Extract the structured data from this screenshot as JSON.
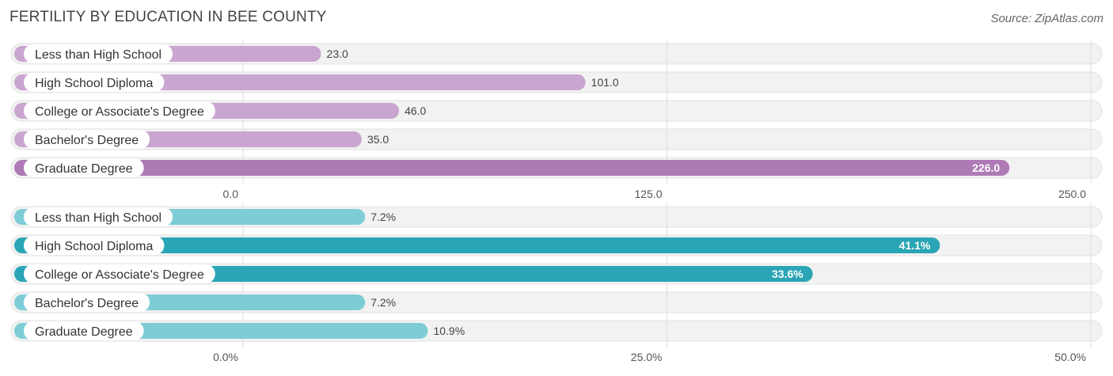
{
  "header": {
    "title": "FERTILITY BY EDUCATION IN BEE COUNTY",
    "source": "Source: ZipAtlas.com"
  },
  "chart_data": [
    {
      "type": "bar",
      "orientation": "horizontal",
      "categories": [
        "Less than High School",
        "High School Diploma",
        "College or Associate's Degree",
        "Bachelor's Degree",
        "Graduate Degree"
      ],
      "values": [
        23.0,
        101.0,
        46.0,
        35.0,
        226.0
      ],
      "value_labels": [
        "23.0",
        "101.0",
        "46.0",
        "35.0",
        "226.0"
      ],
      "xlim": [
        0,
        250
      ],
      "ticks": [
        "0.0",
        "125.0",
        "250.0"
      ],
      "tick_values": [
        0,
        125,
        250
      ],
      "grid": true,
      "colors": {
        "bar": "#c9a6cf",
        "highlight": "#ae7ab5"
      },
      "highlight_index": 4
    },
    {
      "type": "bar",
      "orientation": "horizontal",
      "categories": [
        "Less than High School",
        "High School Diploma",
        "College or Associate's Degree",
        "Bachelor's Degree",
        "Graduate Degree"
      ],
      "values": [
        7.2,
        41.1,
        33.6,
        7.2,
        10.9
      ],
      "value_labels": [
        "7.2%",
        "41.1%",
        "33.6%",
        "7.2%",
        "10.9%"
      ],
      "xlim": [
        0,
        50
      ],
      "ticks": [
        "0.0%",
        "25.0%",
        "50.0%"
      ],
      "tick_values": [
        0,
        25,
        50
      ],
      "grid": true,
      "colors": {
        "bar": "#7ecdd6",
        "highlight": "#2aa5b5"
      },
      "highlight_indices": [
        1,
        2
      ]
    }
  ]
}
